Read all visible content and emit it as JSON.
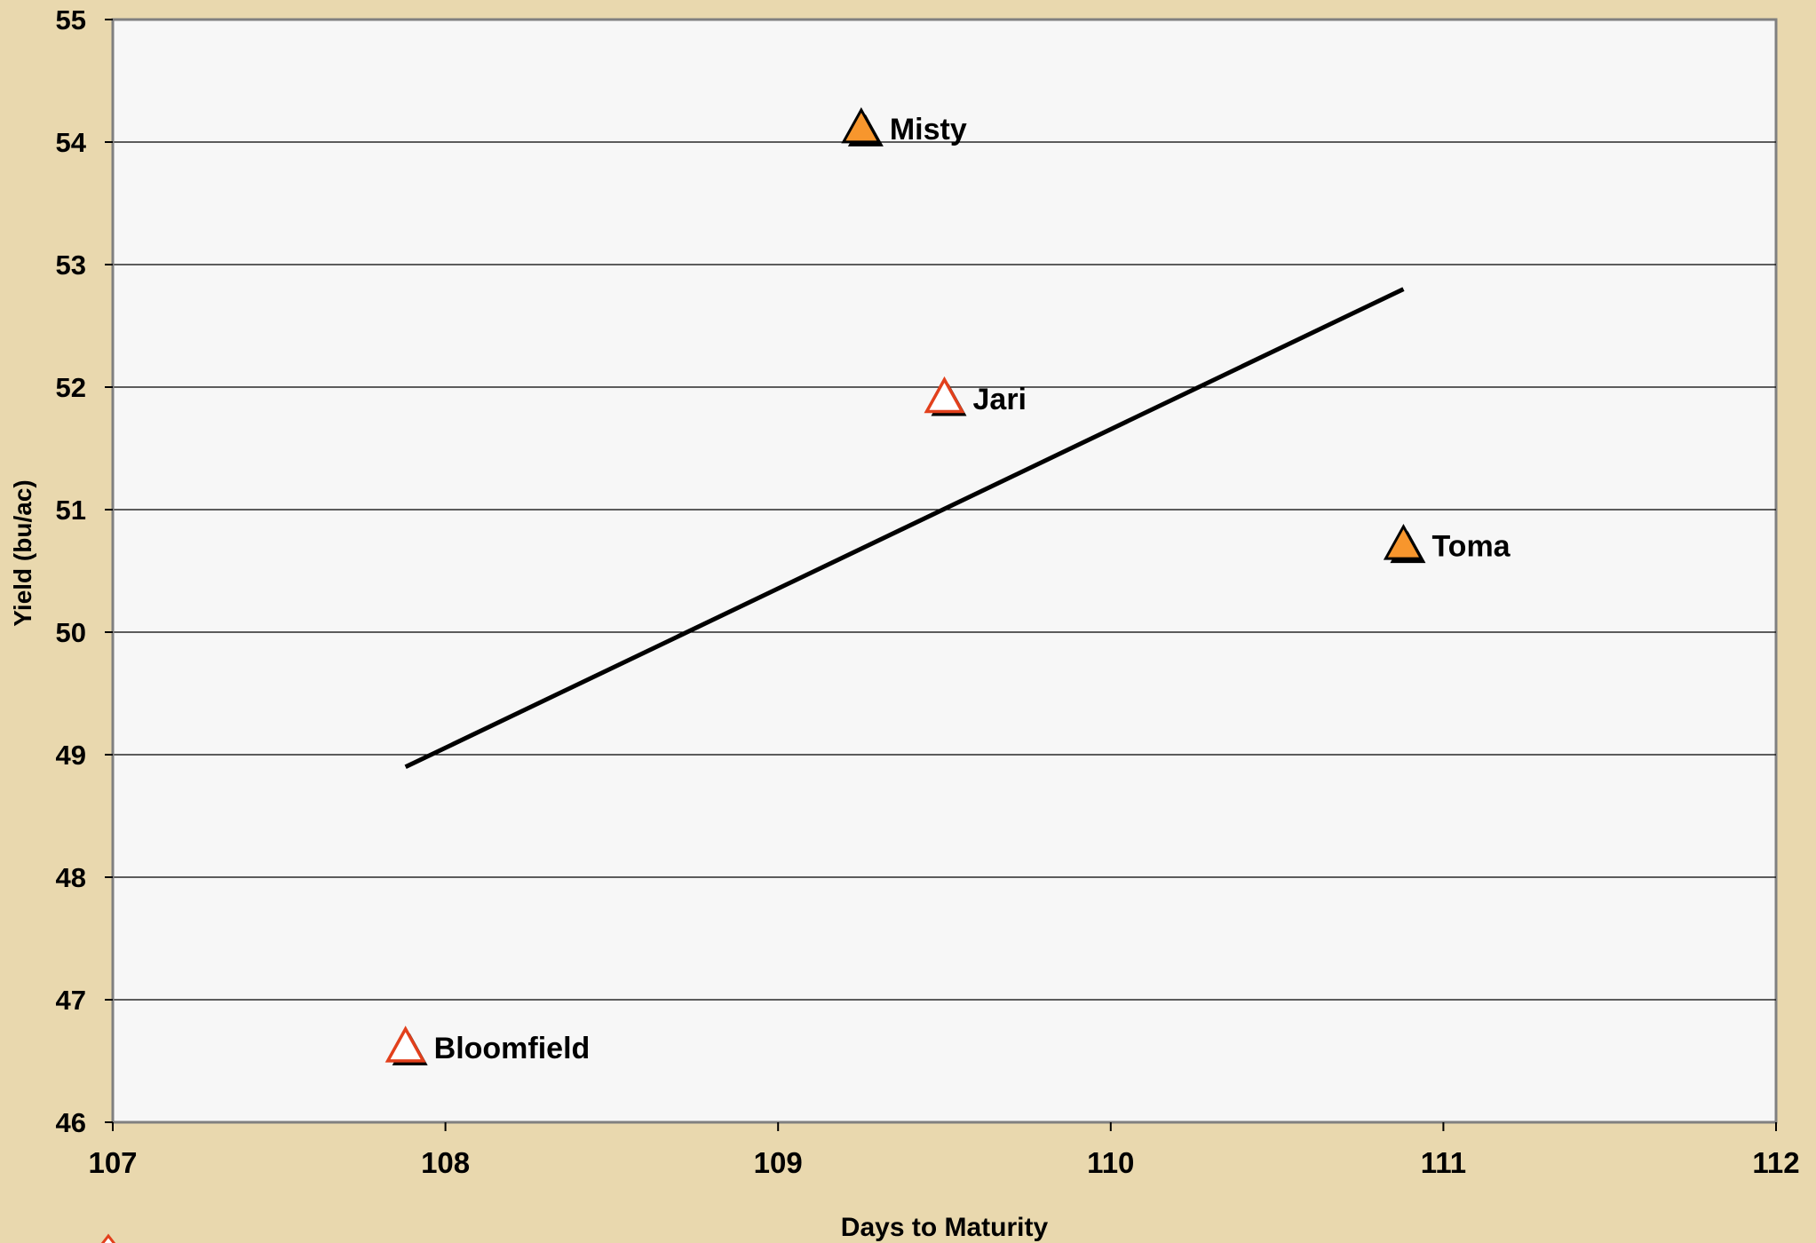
{
  "chart_data": {
    "type": "scatter",
    "xlabel": "Days to Maturity",
    "ylabel": "Yield (bu/ac)",
    "xlim": [
      107,
      112
    ],
    "ylim": [
      46,
      55
    ],
    "xticks": [
      "107",
      "108",
      "109",
      "110",
      "111",
      "112"
    ],
    "yticks": [
      "46",
      "47",
      "48",
      "49",
      "50",
      "51",
      "52",
      "53",
      "54",
      "55"
    ],
    "grid": "horizontal",
    "points": [
      {
        "label": "Misty",
        "x": 109.25,
        "y": 54.1,
        "style": "filled"
      },
      {
        "label": "Jari",
        "x": 109.5,
        "y": 51.9,
        "style": "hollow"
      },
      {
        "label": "Toma",
        "x": 110.88,
        "y": 50.7,
        "style": "filled"
      },
      {
        "label": "Bloomfield",
        "x": 107.88,
        "y": 46.6,
        "style": "hollow"
      }
    ],
    "trendline": {
      "x": [
        107.88,
        110.88
      ],
      "y": [
        48.9,
        52.8
      ]
    }
  },
  "colors": {
    "background": "#E9D8AE",
    "plot_area": "#F7F7F7",
    "gridline": "#000000",
    "filled_marker": "#F7962D",
    "hollow_marker_edge": "#E2401C",
    "marker_shadow": "#000000",
    "trendline": "#000000"
  }
}
